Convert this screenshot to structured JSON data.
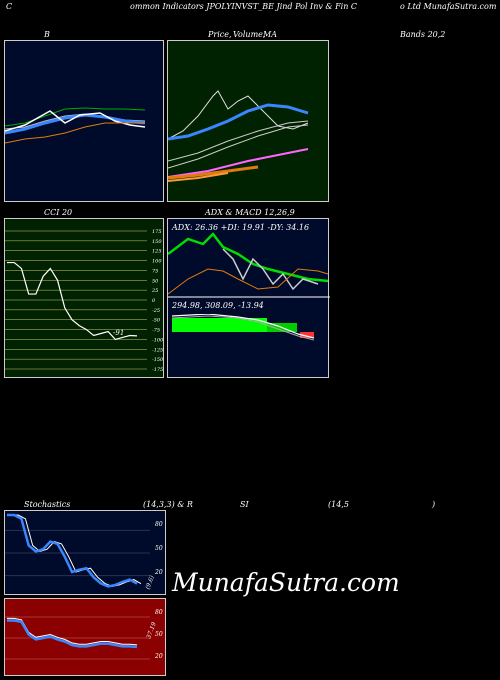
{
  "header": {
    "left": "C",
    "title": "ommon  Indicators JPOLYINVST_BE Jind Pol Inv   & Fin  C",
    "right": "o  Ltd MunafaSutra.com"
  },
  "bands": {
    "label_b": "B",
    "label_mid_a": "Price,",
    "label_mid_b": "Volume,",
    "label_mid_c": "MA",
    "label_right": "Bands 20,2"
  },
  "cci": {
    "label": "CCI 20",
    "value_label": "-91",
    "ticks": [
      "175",
      "150",
      "125",
      "100",
      "75",
      "50",
      "25",
      "0",
      "-25",
      "-50",
      "-75",
      "-100",
      "-125",
      "-150",
      "-175"
    ]
  },
  "adx": {
    "label": "ADX  & MACD 12,26,9",
    "stats": "ADX: 26.36  +DI: 19.91 -DY: 34.16",
    "macd_stats": "294.98,  308.09,  -13.94"
  },
  "stoch": {
    "label_a": "Stochastics",
    "label_b": "(14,3,3) & R",
    "label_c": "SI",
    "label_d": "(14,5",
    "label_e": ")",
    "ticks": [
      "80",
      "50",
      "20"
    ],
    "value_label": "(9.6)"
  },
  "rsi": {
    "ticks": [
      "80",
      "50",
      "20"
    ],
    "value_label": "37.19"
  },
  "brand": "MunafaSutra.com",
  "colors": {
    "navy": "#000a2a",
    "green_panel": "#002200",
    "rsi_red": "#8b0000",
    "blue": "#3a86ff",
    "white": "#ffffff",
    "green_line": "#00cc00",
    "orange": "#e07b10"
  },
  "chart_data": [
    {
      "type": "line",
      "title": "B",
      "series": [],
      "ylim": [
        0,
        100
      ]
    },
    {
      "type": "line",
      "title": "Price, Volume, MA",
      "series": []
    },
    {
      "type": "line",
      "title": "CCI 20",
      "ylim": [
        -175,
        175
      ],
      "series": [
        {
          "values": [
            95,
            95,
            80,
            15,
            15,
            60,
            80,
            50,
            -20,
            -50,
            -65,
            -75,
            -90,
            -85,
            -80,
            -100,
            -95,
            -90,
            -91
          ]
        }
      ]
    },
    {
      "type": "line",
      "title": "ADX & MACD 12,26,9",
      "series": []
    },
    {
      "type": "line",
      "title": "Stochastics (14,3,3)",
      "ylim": [
        0,
        100
      ],
      "series": [
        {
          "values": [
            100,
            100,
            95,
            60,
            52,
            55,
            65,
            62,
            45,
            25,
            28,
            30,
            18,
            10,
            6,
            8,
            12,
            15,
            9.6
          ]
        }
      ]
    },
    {
      "type": "line",
      "title": "RSI (14,5)",
      "ylim": [
        0,
        100
      ],
      "series": [
        {
          "values": [
            75,
            75,
            73,
            55,
            48,
            50,
            52,
            48,
            45,
            40,
            38,
            38,
            40,
            42,
            42,
            40,
            38,
            38,
            37.19
          ]
        }
      ]
    }
  ]
}
